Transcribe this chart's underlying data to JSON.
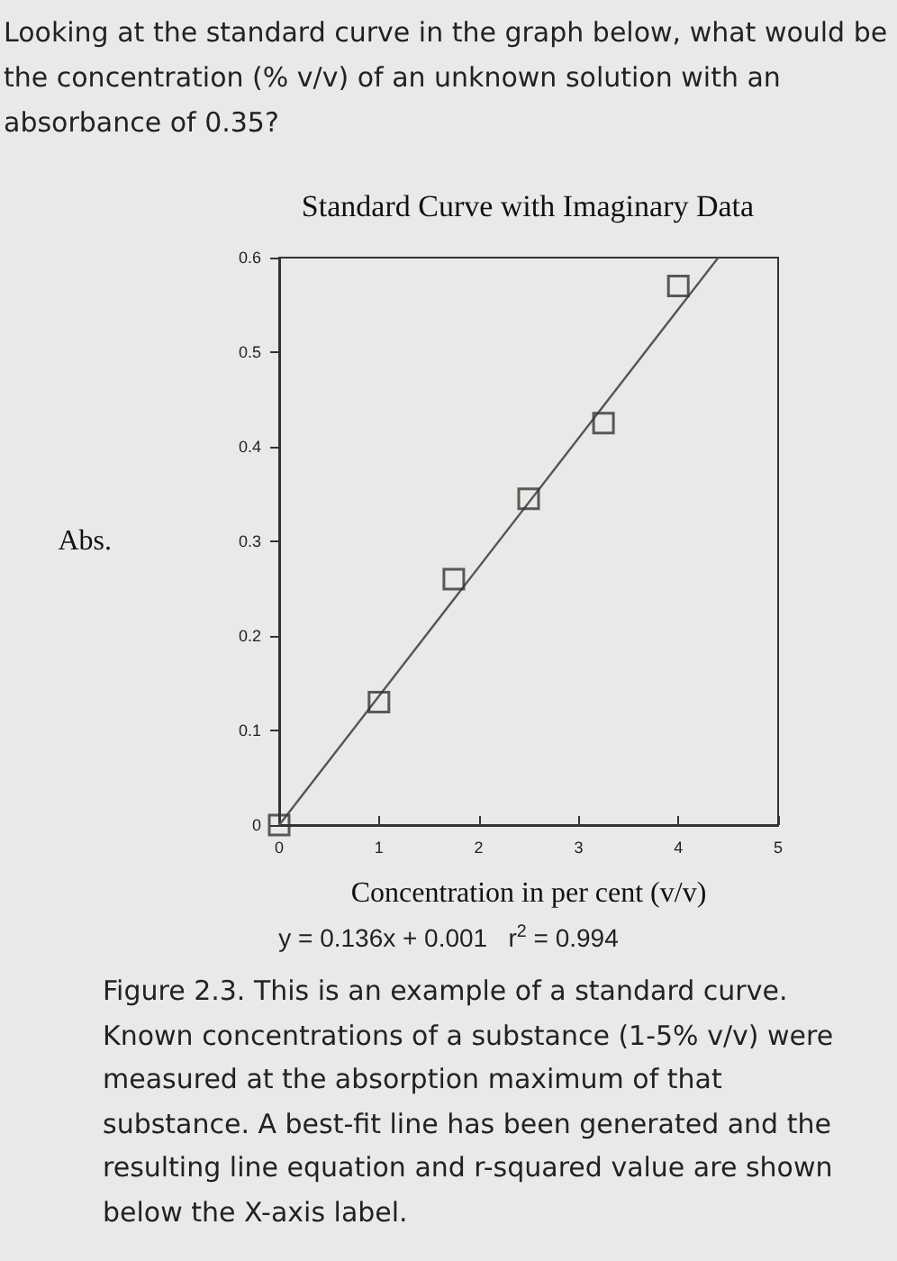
{
  "chart_data": {
    "type": "scatter",
    "title": "Standard Curve with Imaginary Data",
    "xlabel": "Concentration in per cent (v/v)",
    "ylabel": "Abs.",
    "annotations": [
      "Looking at the standard curve in the graph below, what would be the concentration (% v/v) of an unknown solution with an absorbance of 0.35?",
      "y = 0.136x + 0.001   r$^{2}$ = 0.994",
      "Figure 2.3. This is an example of a standard curve. Known concentrations of a substance (1-5% v/v) were measured at the absorption maximum of that substance. A best-fit line has been generated and the resulting line equation and r-squared value are shown below the X-axis label."
    ],
    "series": [
      {
        "color": "#333333",
        "marker": "square",
        "x": [
          0,
          1,
          1.75,
          2.5,
          3.25,
          4
        ],
        "values": [
          0,
          0.13,
          0.26,
          0.345,
          0.425,
          0.57
        ]
      },
      {
        "type": "line",
        "color": "#555555",
        "x": [
          0,
          4.4
        ],
        "values": [
          0,
          0.6
        ]
      }
    ],
    "line_style": "solid",
    "grid": false,
    "xlim": [
      0,
      5
    ],
    "ylim": [
      0,
      0.6
    ],
    "xticks": [
      0,
      1,
      2,
      3,
      4,
      5
    ],
    "yticks": [
      0,
      0.1,
      0.2,
      0.3,
      0.4,
      0.5,
      0.6
    ]
  }
}
